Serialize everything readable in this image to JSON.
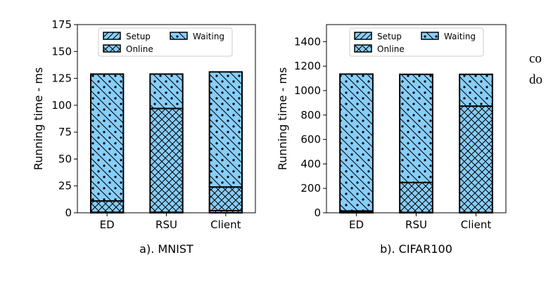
{
  "colors": {
    "fill": "#87cefa",
    "edge": "#000000",
    "background": "#ffffff"
  },
  "hatches": {
    "Setup": "diagonal-lines",
    "Online": "cross-hatch",
    "Waiting": "diagonal-lines-with-dots"
  },
  "side_text": [
    "co",
    "do"
  ],
  "chart_data": [
    {
      "type": "bar",
      "stacked": true,
      "title": "a). MNIST",
      "xlabel": "",
      "ylabel": "Running time - ms",
      "categories": [
        "ED",
        "RSU",
        "Client"
      ],
      "ylim": [
        0,
        175
      ],
      "yticks": [
        0,
        25,
        50,
        75,
        100,
        125,
        150,
        175
      ],
      "grid": false,
      "legend": {
        "placement": "top",
        "entries": [
          "Setup",
          "Waiting",
          "Online"
        ]
      },
      "series": [
        {
          "name": "Setup",
          "values": [
            0.5,
            0.5,
            2
          ]
        },
        {
          "name": "Online",
          "values": [
            10.5,
            96.5,
            22
          ]
        },
        {
          "name": "Waiting",
          "values": [
            118,
            32,
            107
          ]
        }
      ]
    },
    {
      "type": "bar",
      "stacked": true,
      "title": "b). CIFAR100",
      "xlabel": "",
      "ylabel": "Running time - ms",
      "categories": [
        "ED",
        "RSU",
        "Client"
      ],
      "ylim": [
        0,
        1540
      ],
      "yticks": [
        0,
        200,
        400,
        600,
        800,
        1000,
        1200,
        1400
      ],
      "grid": false,
      "legend": {
        "placement": "top",
        "entries": [
          "Setup",
          "Waiting",
          "Online"
        ]
      },
      "series": [
        {
          "name": "Setup",
          "values": [
            3,
            3,
            3
          ]
        },
        {
          "name": "Online",
          "values": [
            12,
            245,
            870
          ]
        },
        {
          "name": "Waiting",
          "values": [
            1120,
            885,
            260
          ]
        }
      ]
    }
  ]
}
